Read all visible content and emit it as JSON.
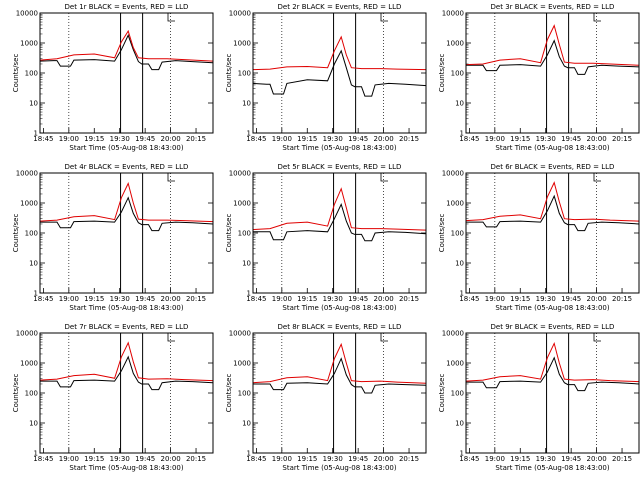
{
  "figure": {
    "xlabel": "Start Time (05-Aug-08 18:43:00)",
    "ylabel": "Counts/sec"
  },
  "chart_data": {
    "type": "line",
    "ylim": [
      1,
      10000
    ],
    "yscale": "log",
    "yticks": [
      1,
      10,
      100,
      1000,
      10000
    ],
    "ytick_labels": [
      "1",
      "10",
      "100",
      "1000",
      "10000"
    ],
    "xlim_minutes_after_start": [
      0,
      102
    ],
    "xtick_minutes": [
      2,
      17,
      32,
      47,
      62,
      77,
      92
    ],
    "xtick_labels": [
      "18:45",
      "19:00",
      "19:15",
      "19:30",
      "19:45",
      "20:00",
      "20:15"
    ],
    "dotted_lines_minutes": [
      17,
      77
    ],
    "interval_markers_minutes": [
      47.5,
      60.5
    ],
    "panels": [
      {
        "title": "Det 1r BLACK = Events, RED = LLD",
        "series": [
          {
            "name": "Events",
            "color": "#000000",
            "x": [
              0,
              8,
              10,
              12,
              18,
              20,
              32,
              44,
              48,
              52,
              55,
              58,
              60,
              64,
              66,
              70,
              72,
              80,
              90,
              102
            ],
            "y": [
              250,
              260,
              260,
              170,
              170,
              270,
              280,
              250,
              600,
              1800,
              600,
              240,
              200,
              200,
              130,
              130,
              230,
              260,
              240,
              220
            ]
          },
          {
            "name": "LLD",
            "color": "#e00000",
            "x": [
              0,
              10,
              20,
              32,
              44,
              48,
              52,
              55,
              58,
              64,
              75,
              85,
              102
            ],
            "y": [
              270,
              300,
              400,
              430,
              320,
              1100,
              2500,
              700,
              320,
              300,
              300,
              280,
              250
            ]
          }
        ]
      },
      {
        "title": "Det 2r BLACK = Events, RED = LLD",
        "series": [
          {
            "name": "Events",
            "color": "#000000",
            "x": [
              0,
              8,
              10,
              12,
              18,
              20,
              32,
              44,
              48,
              52,
              55,
              58,
              60,
              64,
              66,
              70,
              72,
              80,
              90,
              102
            ],
            "y": [
              45,
              42,
              42,
              20,
              20,
              45,
              60,
              55,
              200,
              550,
              150,
              40,
              35,
              35,
              17,
              17,
              40,
              45,
              42,
              38
            ]
          },
          {
            "name": "LLD",
            "color": "#e00000",
            "x": [
              0,
              10,
              20,
              32,
              44,
              48,
              52,
              55,
              58,
              64,
              75,
              85,
              102
            ],
            "y": [
              130,
              135,
              160,
              165,
              150,
              550,
              1600,
              400,
              150,
              140,
              140,
              135,
              130
            ]
          }
        ]
      },
      {
        "title": "Det 3r BLACK = Events, RED = LLD",
        "series": [
          {
            "name": "Events",
            "color": "#000000",
            "x": [
              0,
              8,
              10,
              12,
              18,
              20,
              32,
              44,
              48,
              52,
              55,
              58,
              60,
              64,
              66,
              70,
              72,
              80,
              90,
              102
            ],
            "y": [
              180,
              180,
              180,
              120,
              120,
              180,
              190,
              170,
              400,
              1200,
              350,
              170,
              150,
              150,
              90,
              90,
              160,
              180,
              170,
              160
            ]
          },
          {
            "name": "LLD",
            "color": "#e00000",
            "x": [
              0,
              10,
              20,
              32,
              44,
              48,
              52,
              55,
              58,
              64,
              75,
              85,
              102
            ],
            "y": [
              190,
              200,
              270,
              300,
              220,
              1300,
              3800,
              900,
              230,
              210,
              210,
              200,
              180
            ]
          }
        ]
      },
      {
        "title": "Det 4r BLACK = Events, RED = LLD",
        "series": [
          {
            "name": "Events",
            "color": "#000000",
            "x": [
              0,
              8,
              10,
              12,
              18,
              20,
              32,
              44,
              48,
              52,
              55,
              58,
              60,
              64,
              66,
              70,
              72,
              80,
              90,
              102
            ],
            "y": [
              230,
              230,
              230,
              150,
              150,
              240,
              250,
              230,
              500,
              1500,
              450,
              220,
              190,
              190,
              120,
              120,
              210,
              230,
              220,
              200
            ]
          },
          {
            "name": "LLD",
            "color": "#e00000",
            "x": [
              0,
              10,
              20,
              32,
              44,
              48,
              52,
              55,
              58,
              64,
              75,
              85,
              102
            ],
            "y": [
              250,
              270,
              350,
              380,
              280,
              1500,
              4500,
              1000,
              290,
              270,
              270,
              260,
              240
            ]
          }
        ]
      },
      {
        "title": "Det 5r BLACK = Events, RED = LLD",
        "series": [
          {
            "name": "Events",
            "color": "#000000",
            "x": [
              0,
              8,
              10,
              12,
              18,
              20,
              32,
              44,
              48,
              52,
              55,
              58,
              60,
              64,
              66,
              70,
              72,
              80,
              90,
              102
            ],
            "y": [
              110,
              110,
              110,
              60,
              60,
              110,
              120,
              110,
              300,
              900,
              250,
              100,
              90,
              90,
              55,
              55,
              100,
              110,
              105,
              95
            ]
          },
          {
            "name": "LLD",
            "color": "#e00000",
            "x": [
              0,
              10,
              20,
              32,
              44,
              48,
              52,
              55,
              58,
              64,
              75,
              85,
              102
            ],
            "y": [
              130,
              140,
              210,
              230,
              170,
              900,
              3000,
              700,
              150,
              140,
              140,
              135,
              125
            ]
          }
        ]
      },
      {
        "title": "Det 6r BLACK = Events, RED = LLD",
        "series": [
          {
            "name": "Events",
            "color": "#000000",
            "x": [
              0,
              8,
              10,
              12,
              18,
              20,
              32,
              44,
              48,
              52,
              55,
              58,
              60,
              64,
              66,
              70,
              72,
              80,
              90,
              102
            ],
            "y": [
              230,
              230,
              230,
              160,
              160,
              240,
              250,
              230,
              550,
              1700,
              450,
              220,
              190,
              190,
              120,
              120,
              210,
              230,
              220,
              200
            ]
          },
          {
            "name": "LLD",
            "color": "#e00000",
            "x": [
              0,
              10,
              20,
              32,
              44,
              48,
              52,
              55,
              58,
              64,
              75,
              85,
              102
            ],
            "y": [
              260,
              280,
              360,
              400,
              300,
              1600,
              4800,
              1100,
              300,
              280,
              290,
              270,
              250
            ]
          }
        ]
      },
      {
        "title": "Det 7r BLACK = Events, RED = LLD",
        "series": [
          {
            "name": "Events",
            "color": "#000000",
            "x": [
              0,
              8,
              10,
              12,
              18,
              20,
              32,
              44,
              48,
              52,
              55,
              58,
              60,
              64,
              66,
              70,
              72,
              80,
              90,
              102
            ],
            "y": [
              250,
              250,
              250,
              160,
              160,
              260,
              270,
              250,
              550,
              1600,
              450,
              230,
              200,
              200,
              130,
              130,
              220,
              250,
              240,
              220
            ]
          },
          {
            "name": "LLD",
            "color": "#e00000",
            "x": [
              0,
              10,
              20,
              32,
              44,
              48,
              52,
              55,
              58,
              64,
              75,
              85,
              102
            ],
            "y": [
              270,
              290,
              380,
              420,
              310,
              1600,
              4700,
              1100,
              320,
              290,
              300,
              280,
              260
            ]
          }
        ]
      },
      {
        "title": "Det 8r BLACK = Events, RED = LLD",
        "series": [
          {
            "name": "Events",
            "color": "#000000",
            "x": [
              0,
              8,
              10,
              12,
              18,
              20,
              32,
              44,
              48,
              52,
              55,
              58,
              60,
              64,
              66,
              70,
              72,
              80,
              90,
              102
            ],
            "y": [
              200,
              200,
              200,
              130,
              130,
              210,
              220,
              200,
              450,
              1400,
              400,
              190,
              160,
              160,
              100,
              100,
              180,
              200,
              190,
              180
            ]
          },
          {
            "name": "LLD",
            "color": "#e00000",
            "x": [
              0,
              10,
              20,
              32,
              44,
              48,
              52,
              55,
              58,
              64,
              75,
              85,
              102
            ],
            "y": [
              220,
              240,
              320,
              350,
              260,
              1400,
              4200,
              1000,
              260,
              240,
              250,
              230,
              210
            ]
          }
        ]
      },
      {
        "title": "Det 9r BLACK = Events, RED = LLD",
        "series": [
          {
            "name": "Events",
            "color": "#000000",
            "x": [
              0,
              8,
              10,
              12,
              18,
              20,
              32,
              44,
              48,
              52,
              55,
              58,
              60,
              64,
              66,
              70,
              72,
              80,
              90,
              102
            ],
            "y": [
              230,
              230,
              230,
              150,
              150,
              240,
              250,
              230,
              500,
              1500,
              420,
              220,
              190,
              190,
              120,
              120,
              210,
              230,
              220,
              200
            ]
          },
          {
            "name": "LLD",
            "color": "#e00000",
            "x": [
              0,
              10,
              20,
              32,
              44,
              48,
              52,
              55,
              58,
              64,
              75,
              85,
              102
            ],
            "y": [
              250,
              270,
              350,
              380,
              290,
              1500,
              4500,
              1000,
              290,
              270,
              280,
              260,
              240
            ]
          }
        ]
      }
    ]
  }
}
